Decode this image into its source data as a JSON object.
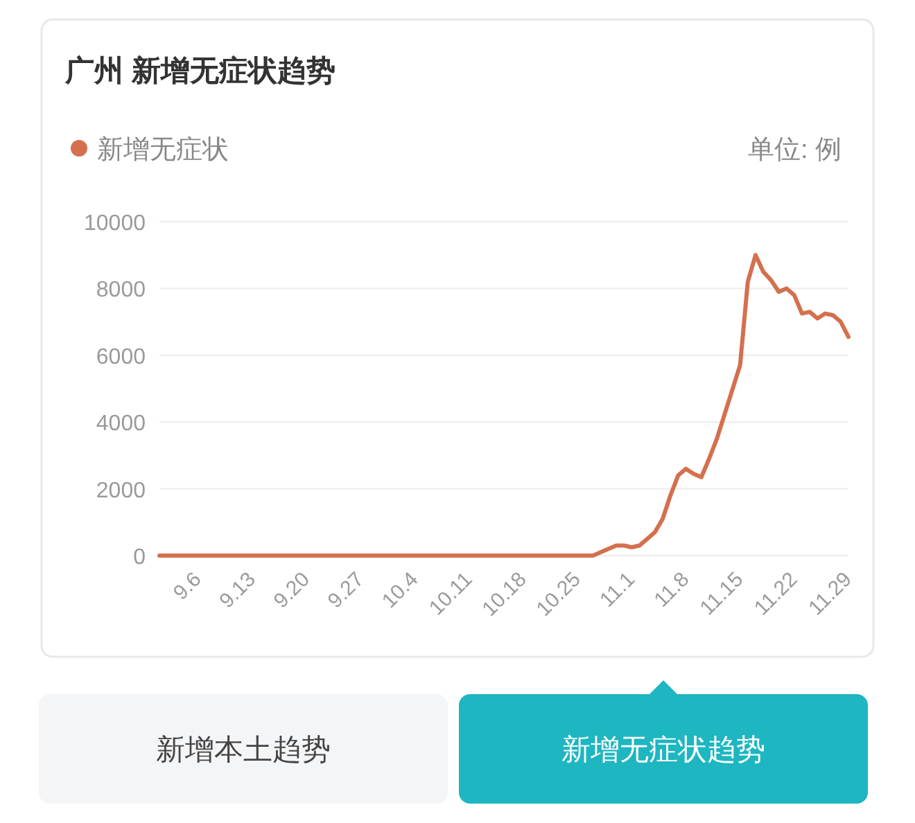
{
  "chart_data": {
    "type": "line",
    "title": "广州 新增无症状趋势",
    "annotations": [
      "单位: 例",
      "新增本土趋势",
      "新增无症状趋势"
    ],
    "x": [
      "--09-01",
      "--09-15",
      "--10-01",
      "--10-15",
      "--10-27",
      "--10-29",
      "--10-30",
      "--10-31",
      "--11-01",
      "--11-02",
      "--11-03",
      "--11-04",
      "--11-05",
      "--11-06",
      "--11-07",
      "--11-08",
      "--11-09",
      "--11-10",
      "--11-11",
      "--11-12",
      "--11-15",
      "--11-16",
      "--11-17",
      "--11-18",
      "--11-19",
      "--11-20",
      "--11-21",
      "--11-22",
      "--11-23",
      "--11-24",
      "--11-25",
      "--11-26",
      "--11-27",
      "--11-28",
      "--11-29"
    ],
    "series": [
      {
        "name": "新增无症状",
        "color": "#d4704e",
        "values": [
          0,
          0,
          0,
          0,
          0,
          200,
          300,
          300,
          250,
          300,
          500,
          700,
          1100,
          1800,
          2400,
          2600,
          2450,
          2350,
          2900,
          3500,
          5700,
          8200,
          9000,
          8500,
          8250,
          7900,
          8000,
          7800,
          7250,
          7300,
          7100,
          7250,
          7200,
          7000,
          6550
        ]
      }
    ],
    "xlim": [
      "--09-01",
      "--11-29"
    ],
    "xticks": [
      {
        "value": "--09-06",
        "label": "9.6"
      },
      {
        "value": "--09-13",
        "label": "9.13"
      },
      {
        "value": "--09-20",
        "label": "9.20"
      },
      {
        "value": "--09-27",
        "label": "9.27"
      },
      {
        "value": "--10-04",
        "label": "10.4"
      },
      {
        "value": "--10-11",
        "label": "10.11"
      },
      {
        "value": "--10-18",
        "label": "10.18"
      },
      {
        "value": "--10-25",
        "label": "10.25"
      },
      {
        "value": "--11-01",
        "label": "11.1"
      },
      {
        "value": "--11-08",
        "label": "11.8"
      },
      {
        "value": "--11-15",
        "label": "11.15"
      },
      {
        "value": "--11-22",
        "label": "11.22"
      },
      {
        "value": "--11-29",
        "label": "11.29"
      }
    ],
    "ylim": [
      0,
      10000
    ],
    "yticks": [
      0,
      2000,
      4000,
      6000,
      8000,
      10000
    ],
    "grid": "y",
    "legend": "top left",
    "line_style": "solid"
  }
}
